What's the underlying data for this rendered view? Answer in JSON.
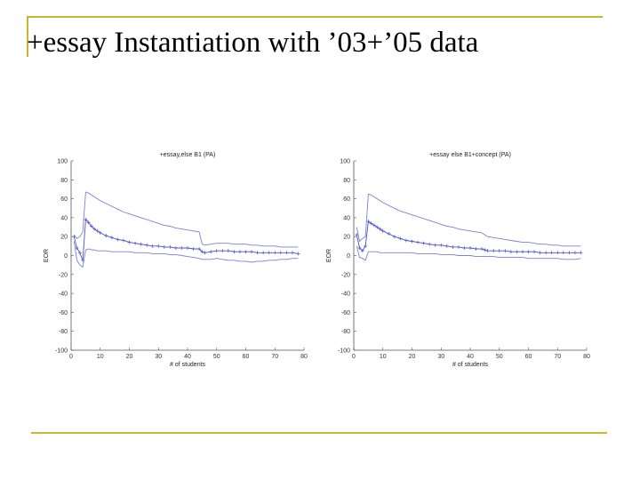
{
  "slide": {
    "title": "+essay Instantiation with ’03+’05 data"
  },
  "chart_data": [
    {
      "type": "line",
      "title": "+essay,else B1 (PA)",
      "xlabel": "# of students",
      "ylabel": "EOR",
      "xlim": [
        0,
        80
      ],
      "ylim": [
        -100,
        100
      ],
      "xticks": [
        0,
        10,
        20,
        30,
        40,
        50,
        60,
        70,
        80
      ],
      "yticks": [
        100,
        80,
        60,
        40,
        20,
        0,
        -20,
        -40,
        -60,
        -80,
        -100
      ],
      "grid": false,
      "x": [
        1,
        2,
        3,
        4,
        5,
        6,
        7,
        8,
        9,
        10,
        12,
        14,
        16,
        18,
        20,
        22,
        24,
        26,
        28,
        30,
        32,
        34,
        36,
        38,
        40,
        42,
        44,
        45,
        46,
        48,
        50,
        52,
        54,
        56,
        58,
        60,
        62,
        64,
        66,
        68,
        70,
        72,
        74,
        76,
        78
      ],
      "series": [
        {
          "values": [
            20,
            8,
            3,
            -5,
            38,
            35,
            31,
            28,
            26,
            24,
            21,
            19,
            17,
            16,
            14,
            13,
            12,
            11,
            10,
            10,
            9,
            9,
            8,
            8,
            8,
            7,
            7,
            4,
            3,
            4,
            5,
            5,
            5,
            4,
            4,
            4,
            4,
            3,
            3,
            3,
            3,
            3,
            3,
            3,
            2
          ],
          "marker": "+"
        },
        {
          "values": [
            22,
            18,
            20,
            25,
            67,
            66,
            64,
            62,
            60,
            58,
            55,
            52,
            49,
            46,
            44,
            42,
            40,
            38,
            36,
            34,
            32,
            31,
            29,
            28,
            27,
            26,
            25,
            12,
            11,
            12,
            13,
            13,
            13,
            12,
            12,
            12,
            11,
            11,
            10,
            10,
            10,
            9,
            9,
            9,
            9
          ],
          "marker": "none"
        },
        {
          "values": [
            15,
            -5,
            -10,
            -12,
            6,
            7,
            6,
            6,
            5,
            5,
            5,
            4,
            4,
            4,
            4,
            3,
            3,
            3,
            2,
            2,
            2,
            1,
            1,
            0,
            -1,
            -2,
            -3,
            -4,
            -4,
            -4,
            -3,
            -4,
            -5,
            -5,
            -6,
            -6,
            -7,
            -6,
            -6,
            -5,
            -5,
            -4,
            -4,
            -3,
            -3
          ],
          "marker": "none"
        }
      ]
    },
    {
      "type": "line",
      "title": "+essay else B1+concept (PA)",
      "xlabel": "# of students",
      "ylabel": "EOR",
      "xlim": [
        0,
        80
      ],
      "ylim": [
        -100,
        100
      ],
      "xticks": [
        0,
        10,
        20,
        30,
        40,
        50,
        60,
        70,
        80
      ],
      "yticks": [
        100,
        80,
        60,
        40,
        20,
        0,
        -20,
        -40,
        -60,
        -80,
        -100
      ],
      "grid": false,
      "x": [
        1,
        2,
        3,
        4,
        5,
        6,
        7,
        8,
        9,
        10,
        12,
        14,
        16,
        18,
        20,
        22,
        24,
        26,
        28,
        30,
        32,
        34,
        36,
        38,
        40,
        42,
        44,
        45,
        46,
        48,
        50,
        52,
        54,
        56,
        58,
        60,
        62,
        64,
        66,
        68,
        70,
        72,
        74,
        76,
        78
      ],
      "series": [
        {
          "values": [
            22,
            8,
            5,
            10,
            36,
            34,
            32,
            30,
            28,
            26,
            23,
            20,
            18,
            16,
            15,
            14,
            13,
            12,
            11,
            11,
            10,
            9,
            9,
            8,
            8,
            7,
            7,
            6,
            5,
            5,
            5,
            5,
            4,
            4,
            4,
            4,
            4,
            3,
            3,
            3,
            3,
            3,
            3,
            3,
            3
          ],
          "marker": "+"
        },
        {
          "values": [
            30,
            15,
            18,
            20,
            65,
            64,
            62,
            60,
            58,
            56,
            53,
            50,
            47,
            45,
            43,
            41,
            39,
            37,
            35,
            33,
            31,
            30,
            28,
            27,
            26,
            25,
            24,
            22,
            20,
            19,
            18,
            17,
            16,
            15,
            14,
            14,
            13,
            12,
            12,
            11,
            11,
            10,
            10,
            10,
            10
          ],
          "marker": "none"
        },
        {
          "values": [
            10,
            -2,
            -3,
            -5,
            4,
            4,
            4,
            4,
            3,
            3,
            3,
            3,
            3,
            3,
            3,
            2,
            2,
            2,
            2,
            1,
            1,
            1,
            0,
            0,
            0,
            -1,
            -1,
            -1,
            -1,
            -1,
            -2,
            -2,
            -2,
            -2,
            -2,
            -3,
            -3,
            -3,
            -3,
            -3,
            -3,
            -4,
            -4,
            -4,
            -3
          ],
          "marker": "none"
        }
      ]
    }
  ],
  "colors": {
    "accent_bar": "#c8b530",
    "series_mean": "#4d52c9",
    "series_band": "#7b80d8",
    "axis": "#555555"
  }
}
